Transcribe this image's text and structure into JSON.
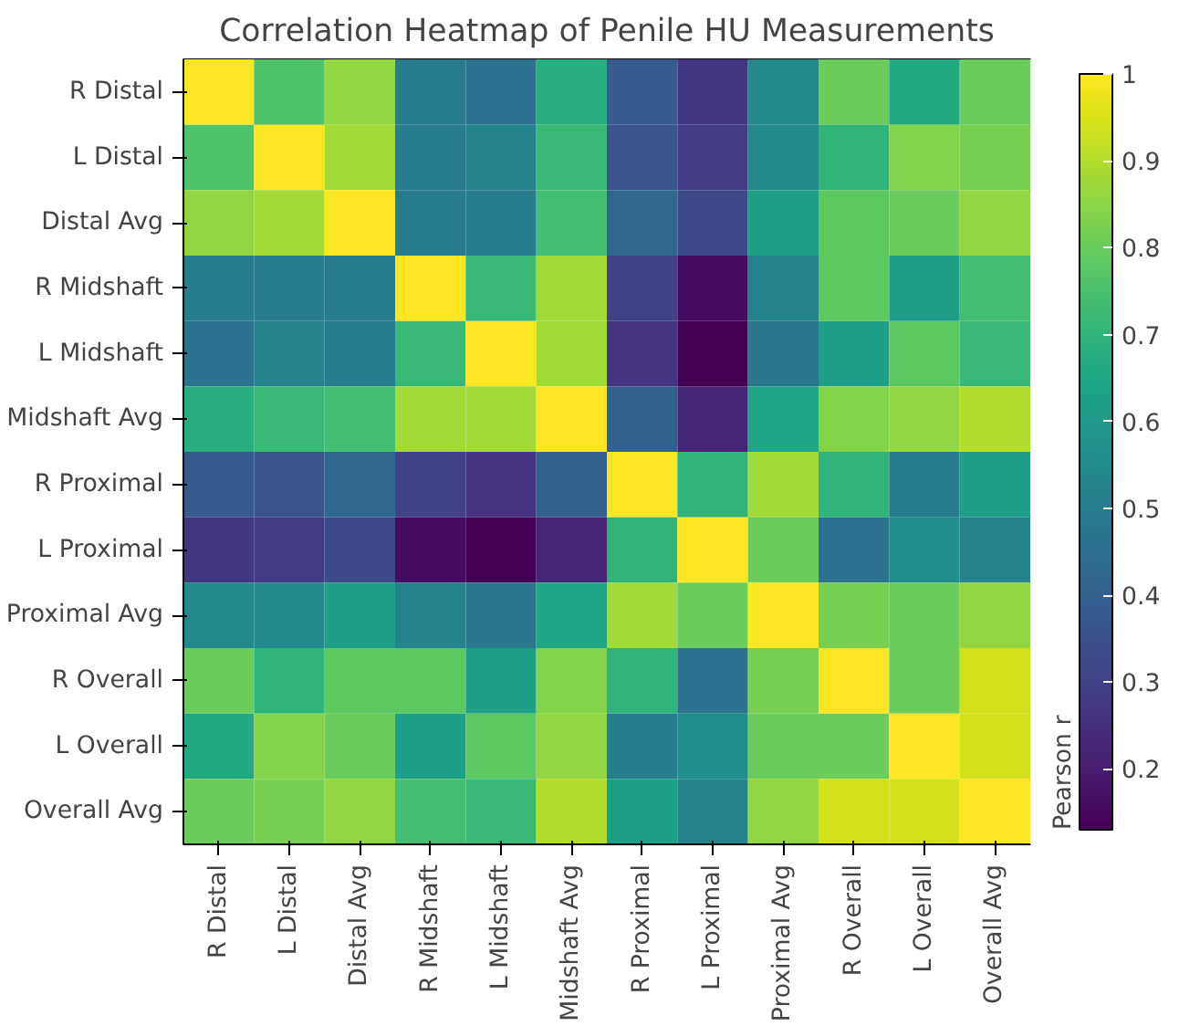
{
  "chart_data": {
    "type": "heatmap",
    "title": "Correlation Heatmap of Penile HU Measurements",
    "clabel": "Pearson r",
    "categories": [
      "R Distal",
      "L Distal",
      "Distal Avg",
      "R Midshaft",
      "L Midshaft",
      "Midshaft Avg",
      "R Proximal",
      "L Proximal",
      "Proximal Avg",
      "R Overall",
      "L Overall",
      "Overall Avg"
    ],
    "y_categories": [
      "R Distal",
      "L Distal",
      "Distal Avg",
      "R Midshaft",
      "L Midshaft",
      "Midshaft Avg",
      "R Proximal",
      "L Proximal",
      "Proximal Avg",
      "R Overall",
      "L Overall",
      "Overall Avg"
    ],
    "cells": [
      [
        1.0,
        0.76,
        0.86,
        0.5,
        0.46,
        0.68,
        0.38,
        0.27,
        0.54,
        0.8,
        0.66,
        0.8
      ],
      [
        0.76,
        1.0,
        0.88,
        0.5,
        0.52,
        0.72,
        0.36,
        0.28,
        0.54,
        0.7,
        0.84,
        0.82
      ],
      [
        0.86,
        0.88,
        1.0,
        0.5,
        0.5,
        0.74,
        0.42,
        0.33,
        0.62,
        0.78,
        0.8,
        0.86
      ],
      [
        0.5,
        0.5,
        0.5,
        1.0,
        0.72,
        0.88,
        0.3,
        0.16,
        0.52,
        0.78,
        0.62,
        0.74
      ],
      [
        0.46,
        0.52,
        0.5,
        0.72,
        1.0,
        0.88,
        0.26,
        0.13,
        0.48,
        0.62,
        0.78,
        0.72
      ],
      [
        0.68,
        0.72,
        0.74,
        0.88,
        0.88,
        1.0,
        0.4,
        0.22,
        0.64,
        0.84,
        0.86,
        0.9
      ],
      [
        0.38,
        0.36,
        0.42,
        0.3,
        0.26,
        0.4,
        1.0,
        0.7,
        0.88,
        0.7,
        0.5,
        0.62
      ],
      [
        0.27,
        0.28,
        0.33,
        0.16,
        0.13,
        0.22,
        0.7,
        1.0,
        0.8,
        0.46,
        0.56,
        0.52
      ],
      [
        0.54,
        0.54,
        0.62,
        0.52,
        0.48,
        0.64,
        0.88,
        0.8,
        1.0,
        0.82,
        0.8,
        0.86
      ],
      [
        0.8,
        0.7,
        0.78,
        0.78,
        0.62,
        0.84,
        0.7,
        0.46,
        0.82,
        1.0,
        0.8,
        0.94
      ],
      [
        0.66,
        0.84,
        0.8,
        0.62,
        0.78,
        0.86,
        0.5,
        0.56,
        0.8,
        0.8,
        1.0,
        0.94
      ],
      [
        0.8,
        0.82,
        0.86,
        0.74,
        0.72,
        0.9,
        0.62,
        0.52,
        0.86,
        0.94,
        0.94,
        1.0
      ]
    ],
    "clim": [
      0.13,
      1.0
    ],
    "cticks": [
      0.2,
      0.3,
      0.4,
      0.5,
      0.6,
      0.7,
      0.8,
      0.9,
      1.0
    ]
  }
}
